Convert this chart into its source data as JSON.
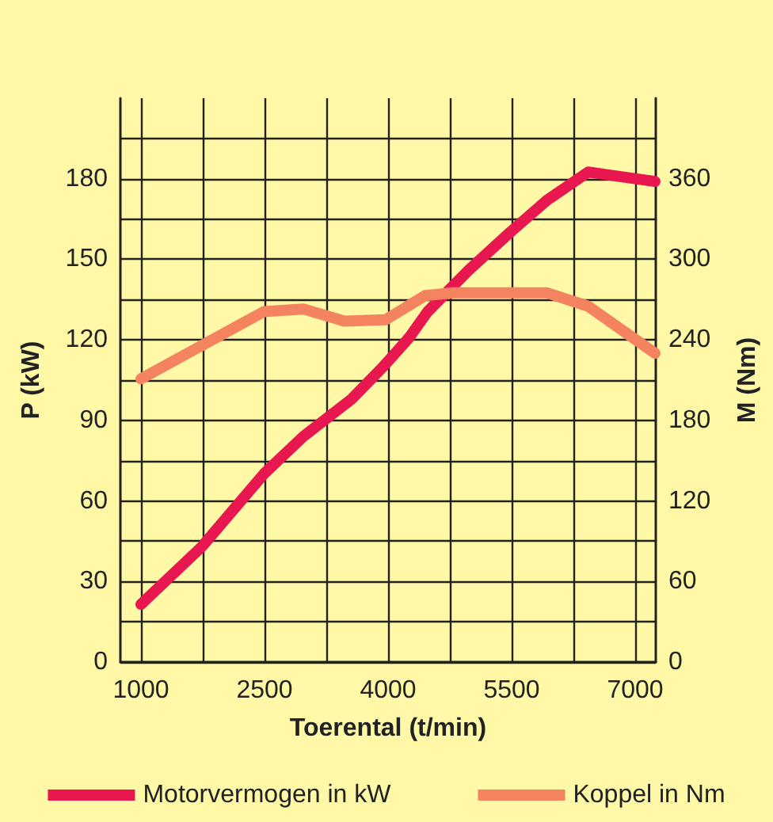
{
  "chart_data": {
    "type": "line",
    "xlabel": "Toerental (t/min)",
    "ylabel": "P (kW)",
    "y2label": "M (Nm)",
    "xlim": [
      750,
      7250
    ],
    "xticks": [
      {
        "value": 1000,
        "label": "1000"
      },
      {
        "value": 1750,
        "label": null
      },
      {
        "value": 2500,
        "label": "2500"
      },
      {
        "value": 3250,
        "label": null
      },
      {
        "value": 4000,
        "label": "4000"
      },
      {
        "value": 4750,
        "label": null
      },
      {
        "value": 5500,
        "label": "5500"
      },
      {
        "value": 6250,
        "label": null
      },
      {
        "value": 7000,
        "label": "7000"
      }
    ],
    "ylim": [
      0,
      210
    ],
    "yticks": [
      0,
      {
        "value": 15,
        "label": null
      },
      30,
      {
        "value": 45,
        "label": null
      },
      60,
      {
        "value": 75,
        "label": null
      },
      90,
      {
        "value": 105,
        "label": null
      },
      120,
      {
        "value": 135,
        "label": null
      },
      150,
      {
        "value": 165,
        "label": null
      },
      180,
      {
        "value": 195,
        "label": null
      }
    ],
    "y2lim": [
      0,
      420
    ],
    "y2ticks": [
      0,
      60,
      120,
      180,
      240,
      300,
      360
    ],
    "grid": true,
    "legend": "bottom",
    "line_style": "solid",
    "series": [
      {
        "name": "Motorvermogen in kW",
        "color": "#e8174f",
        "x": [
          1000,
          1740,
          2490,
          2970,
          3560,
          3940,
          4260,
          4480,
          4980,
          5480,
          5930,
          6430,
          7240
        ],
        "values": [
          21.5,
          43,
          70,
          84,
          98,
          110,
          121,
          130.5,
          146,
          160,
          172,
          182.5,
          179
        ]
      },
      {
        "name": "Koppel in Nm",
        "color": "#f4845f",
        "axis": "y2",
        "x": [
          1000,
          2490,
          2970,
          3470,
          3970,
          4450,
          4790,
          5930,
          6430,
          7240
        ],
        "values": [
          211,
          261,
          263,
          254,
          255,
          273,
          275,
          275,
          265,
          230
        ]
      }
    ]
  }
}
